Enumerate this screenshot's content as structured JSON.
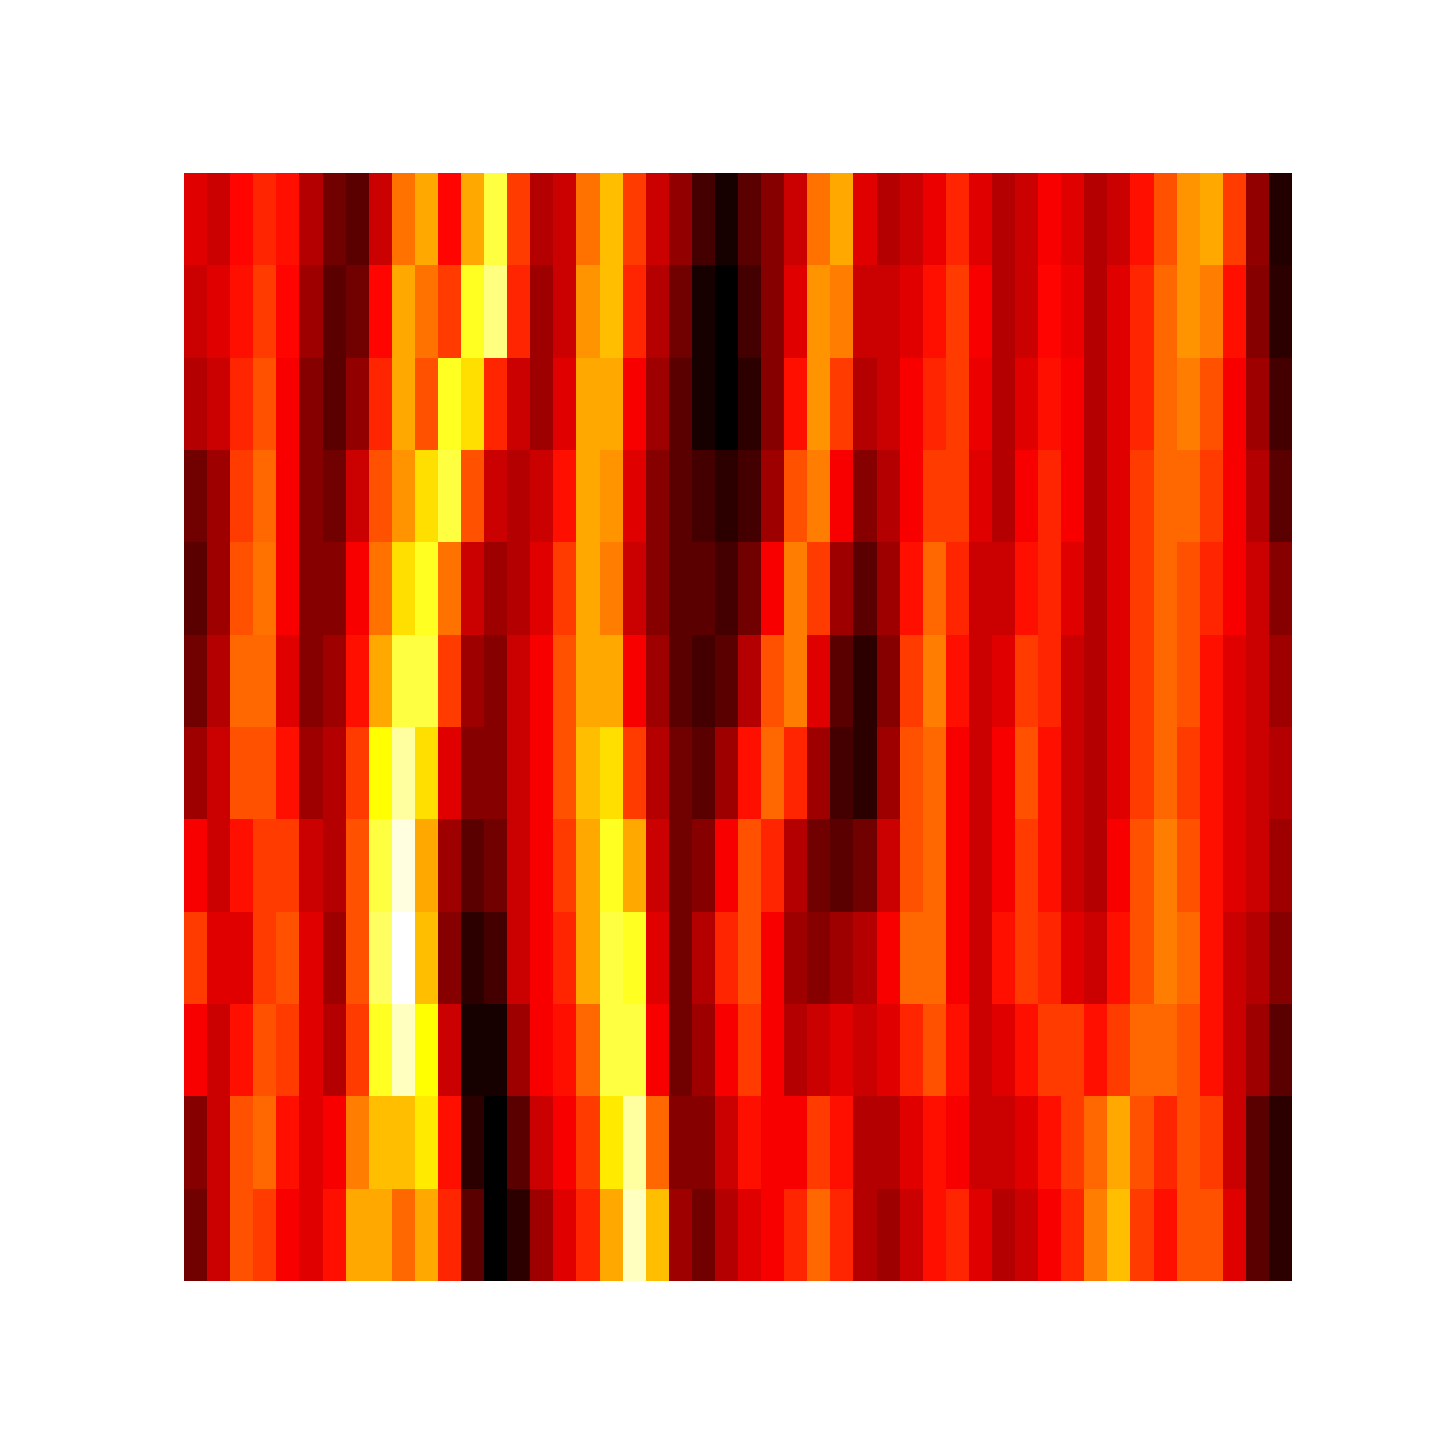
{
  "chart_data": {
    "type": "heatmap",
    "tick_labels": false,
    "cells": [
      [
        0.32,
        0.3,
        0.35,
        0.38,
        0.36,
        0.28,
        0.22,
        0.2,
        0.3,
        0.45,
        0.5,
        0.35,
        0.5,
        0.62,
        0.4,
        0.28,
        0.3,
        0.45,
        0.52,
        0.4,
        0.3,
        0.25,
        0.18,
        0.14,
        0.2,
        0.24,
        0.3,
        0.45,
        0.5,
        0.32,
        0.28,
        0.3,
        0.33,
        0.38,
        0.32,
        0.28,
        0.3,
        0.34,
        0.32,
        0.28,
        0.3,
        0.36,
        0.42,
        0.48,
        0.5,
        0.4,
        0.25,
        0.15
      ],
      [
        0.3,
        0.32,
        0.36,
        0.4,
        0.35,
        0.26,
        0.2,
        0.22,
        0.35,
        0.5,
        0.45,
        0.4,
        0.6,
        0.66,
        0.38,
        0.26,
        0.3,
        0.48,
        0.52,
        0.38,
        0.28,
        0.22,
        0.14,
        0.12,
        0.18,
        0.24,
        0.32,
        0.48,
        0.46,
        0.3,
        0.3,
        0.32,
        0.36,
        0.4,
        0.34,
        0.28,
        0.3,
        0.35,
        0.33,
        0.28,
        0.32,
        0.38,
        0.44,
        0.48,
        0.46,
        0.36,
        0.24,
        0.16
      ],
      [
        0.28,
        0.3,
        0.38,
        0.42,
        0.34,
        0.24,
        0.2,
        0.25,
        0.38,
        0.5,
        0.42,
        0.6,
        0.55,
        0.38,
        0.3,
        0.26,
        0.32,
        0.5,
        0.5,
        0.34,
        0.26,
        0.2,
        0.14,
        0.12,
        0.16,
        0.24,
        0.36,
        0.48,
        0.4,
        0.28,
        0.3,
        0.34,
        0.38,
        0.4,
        0.33,
        0.28,
        0.32,
        0.36,
        0.34,
        0.28,
        0.32,
        0.38,
        0.44,
        0.46,
        0.42,
        0.34,
        0.26,
        0.18
      ],
      [
        0.22,
        0.26,
        0.4,
        0.44,
        0.34,
        0.24,
        0.22,
        0.3,
        0.42,
        0.48,
        0.55,
        0.62,
        0.42,
        0.3,
        0.28,
        0.3,
        0.36,
        0.5,
        0.48,
        0.32,
        0.24,
        0.2,
        0.18,
        0.16,
        0.18,
        0.26,
        0.42,
        0.46,
        0.34,
        0.24,
        0.28,
        0.34,
        0.4,
        0.4,
        0.32,
        0.28,
        0.34,
        0.38,
        0.34,
        0.28,
        0.32,
        0.4,
        0.44,
        0.44,
        0.4,
        0.34,
        0.28,
        0.2
      ],
      [
        0.2,
        0.26,
        0.42,
        0.45,
        0.34,
        0.24,
        0.24,
        0.34,
        0.45,
        0.55,
        0.6,
        0.45,
        0.3,
        0.26,
        0.28,
        0.32,
        0.4,
        0.5,
        0.46,
        0.3,
        0.24,
        0.2,
        0.2,
        0.18,
        0.22,
        0.34,
        0.46,
        0.4,
        0.26,
        0.2,
        0.26,
        0.36,
        0.44,
        0.38,
        0.3,
        0.3,
        0.36,
        0.38,
        0.32,
        0.28,
        0.32,
        0.4,
        0.44,
        0.42,
        0.38,
        0.34,
        0.3,
        0.24
      ],
      [
        0.22,
        0.28,
        0.44,
        0.44,
        0.32,
        0.24,
        0.26,
        0.36,
        0.5,
        0.62,
        0.62,
        0.4,
        0.26,
        0.24,
        0.3,
        0.34,
        0.42,
        0.5,
        0.5,
        0.34,
        0.26,
        0.2,
        0.18,
        0.2,
        0.28,
        0.42,
        0.46,
        0.32,
        0.2,
        0.16,
        0.24,
        0.4,
        0.46,
        0.36,
        0.3,
        0.32,
        0.4,
        0.38,
        0.3,
        0.28,
        0.32,
        0.4,
        0.44,
        0.42,
        0.36,
        0.32,
        0.3,
        0.26
      ],
      [
        0.26,
        0.3,
        0.42,
        0.42,
        0.36,
        0.26,
        0.28,
        0.4,
        0.58,
        0.68,
        0.55,
        0.32,
        0.24,
        0.24,
        0.3,
        0.34,
        0.42,
        0.52,
        0.55,
        0.4,
        0.28,
        0.22,
        0.2,
        0.26,
        0.36,
        0.44,
        0.38,
        0.26,
        0.18,
        0.16,
        0.26,
        0.42,
        0.44,
        0.34,
        0.3,
        0.34,
        0.42,
        0.36,
        0.3,
        0.28,
        0.32,
        0.4,
        0.44,
        0.4,
        0.36,
        0.32,
        0.3,
        0.28
      ],
      [
        0.34,
        0.3,
        0.36,
        0.4,
        0.4,
        0.3,
        0.28,
        0.42,
        0.62,
        0.72,
        0.5,
        0.26,
        0.2,
        0.22,
        0.3,
        0.34,
        0.4,
        0.5,
        0.6,
        0.5,
        0.3,
        0.22,
        0.24,
        0.34,
        0.42,
        0.38,
        0.28,
        0.22,
        0.2,
        0.22,
        0.3,
        0.42,
        0.44,
        0.34,
        0.3,
        0.34,
        0.4,
        0.36,
        0.3,
        0.28,
        0.34,
        0.42,
        0.46,
        0.42,
        0.36,
        0.32,
        0.3,
        0.26
      ],
      [
        0.4,
        0.32,
        0.32,
        0.4,
        0.42,
        0.32,
        0.26,
        0.42,
        0.64,
        0.74,
        0.52,
        0.24,
        0.16,
        0.18,
        0.3,
        0.34,
        0.38,
        0.5,
        0.62,
        0.6,
        0.32,
        0.22,
        0.28,
        0.38,
        0.42,
        0.34,
        0.26,
        0.24,
        0.26,
        0.28,
        0.34,
        0.44,
        0.44,
        0.34,
        0.3,
        0.36,
        0.4,
        0.38,
        0.32,
        0.3,
        0.36,
        0.42,
        0.46,
        0.44,
        0.36,
        0.3,
        0.28,
        0.24
      ],
      [
        0.34,
        0.3,
        0.36,
        0.42,
        0.4,
        0.32,
        0.28,
        0.4,
        0.6,
        0.7,
        0.58,
        0.3,
        0.14,
        0.14,
        0.26,
        0.34,
        0.36,
        0.44,
        0.62,
        0.62,
        0.34,
        0.22,
        0.26,
        0.34,
        0.4,
        0.34,
        0.28,
        0.3,
        0.32,
        0.3,
        0.32,
        0.38,
        0.42,
        0.36,
        0.3,
        0.32,
        0.36,
        0.4,
        0.4,
        0.36,
        0.4,
        0.44,
        0.44,
        0.42,
        0.36,
        0.3,
        0.26,
        0.2
      ],
      [
        0.24,
        0.3,
        0.42,
        0.44,
        0.36,
        0.32,
        0.34,
        0.46,
        0.52,
        0.52,
        0.56,
        0.36,
        0.16,
        0.12,
        0.2,
        0.3,
        0.34,
        0.4,
        0.56,
        0.68,
        0.44,
        0.24,
        0.24,
        0.3,
        0.36,
        0.34,
        0.34,
        0.4,
        0.36,
        0.28,
        0.28,
        0.32,
        0.36,
        0.34,
        0.3,
        0.3,
        0.32,
        0.36,
        0.4,
        0.44,
        0.5,
        0.42,
        0.38,
        0.42,
        0.4,
        0.3,
        0.2,
        0.16
      ],
      [
        0.22,
        0.3,
        0.42,
        0.4,
        0.34,
        0.32,
        0.36,
        0.5,
        0.5,
        0.44,
        0.5,
        0.38,
        0.2,
        0.12,
        0.16,
        0.26,
        0.32,
        0.38,
        0.5,
        0.7,
        0.52,
        0.26,
        0.22,
        0.28,
        0.32,
        0.34,
        0.38,
        0.44,
        0.38,
        0.28,
        0.26,
        0.3,
        0.36,
        0.38,
        0.32,
        0.28,
        0.3,
        0.34,
        0.38,
        0.46,
        0.52,
        0.4,
        0.36,
        0.42,
        0.42,
        0.32,
        0.2,
        0.16
      ]
    ]
  }
}
